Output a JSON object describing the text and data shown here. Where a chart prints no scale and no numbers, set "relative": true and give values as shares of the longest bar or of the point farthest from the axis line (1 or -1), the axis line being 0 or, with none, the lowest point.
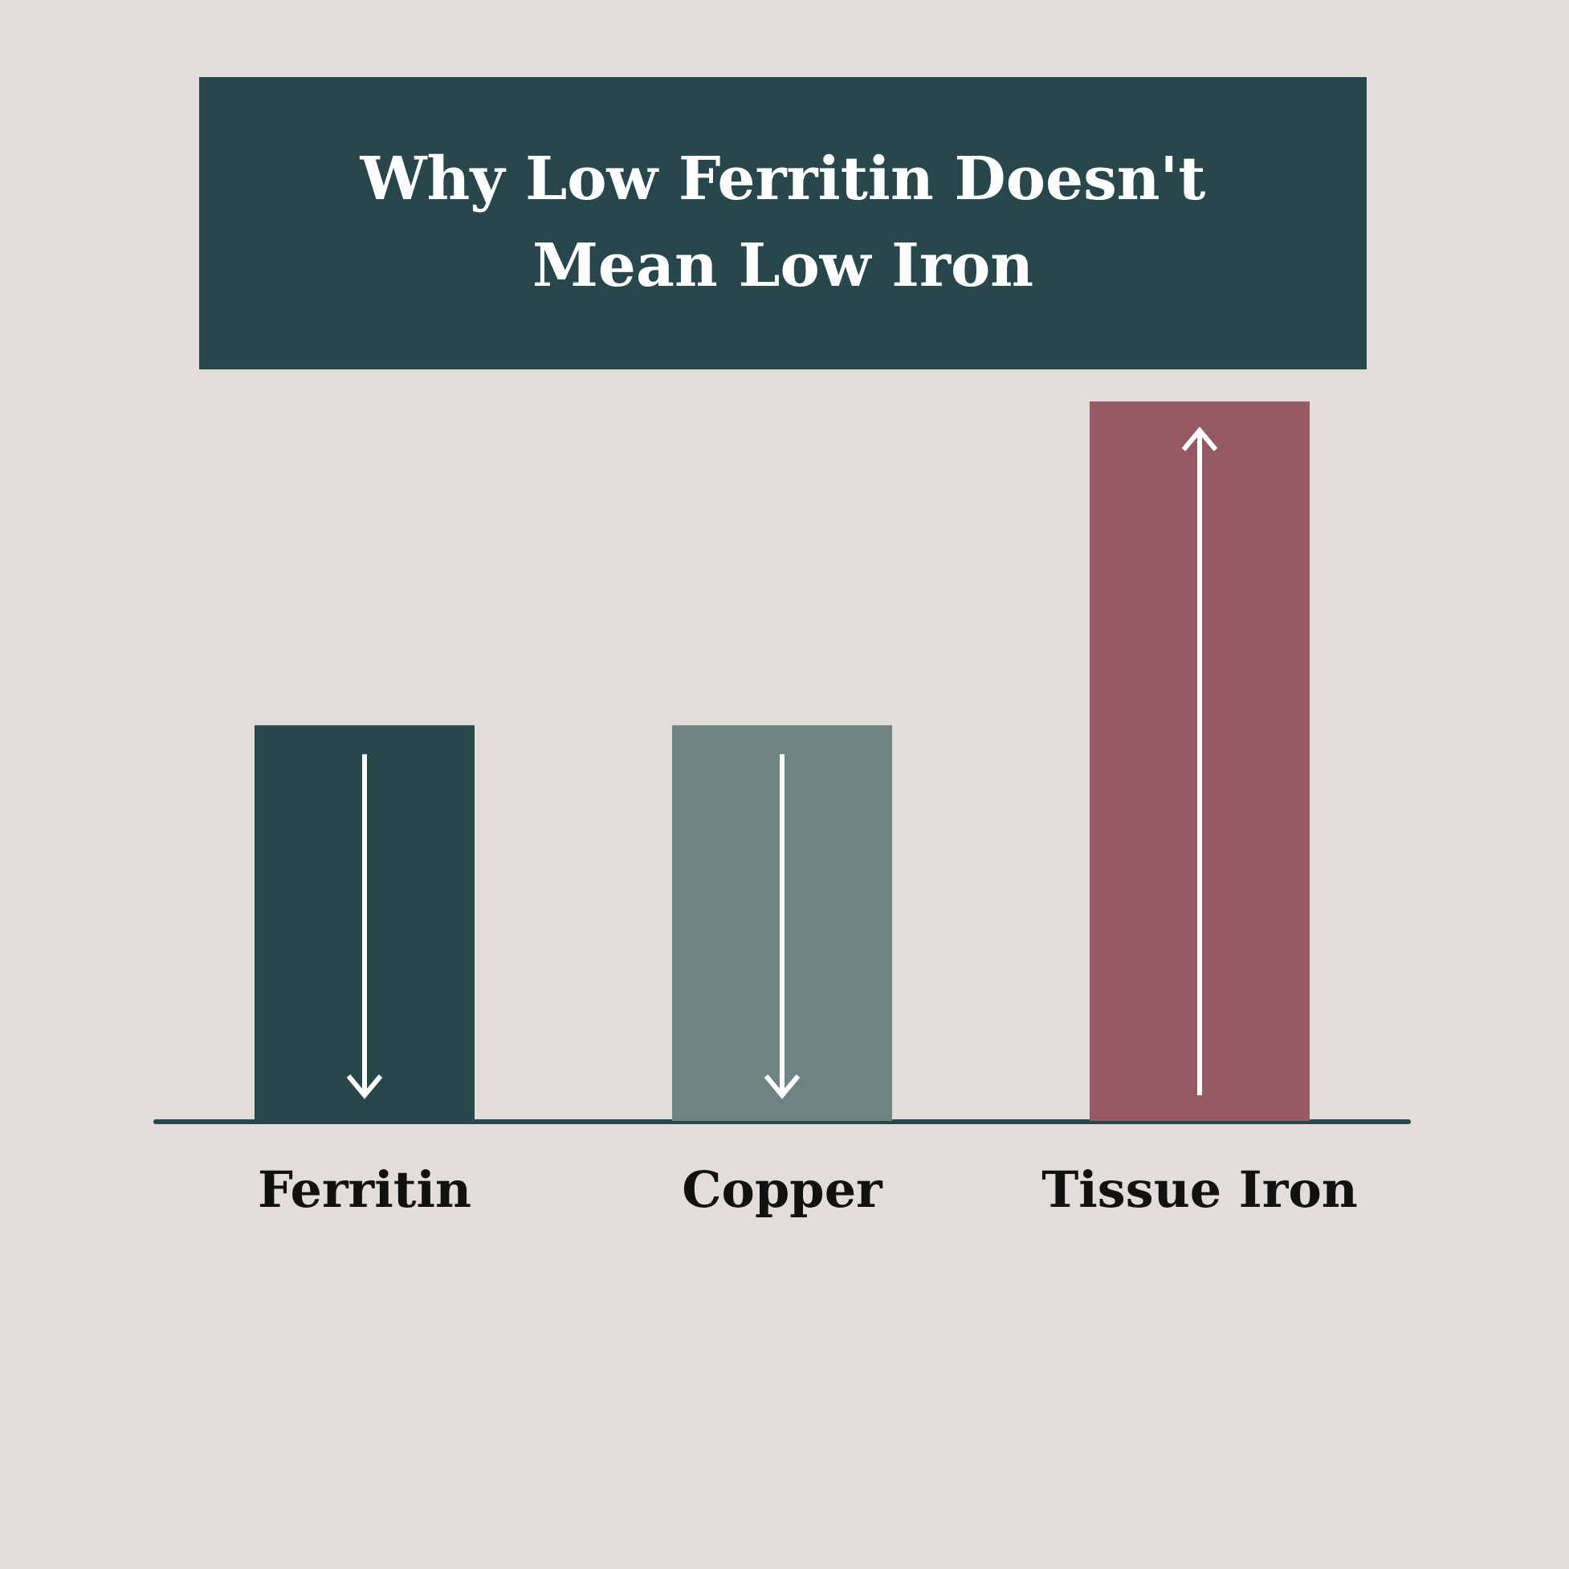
{
  "chart_data": {
    "type": "bar",
    "title": "Why Low Ferritin Doesn't Mean Low Iron",
    "categories": [
      "Ferritin",
      "Copper",
      "Tissue Iron"
    ],
    "values": [
      0.55,
      0.55,
      1
    ],
    "colors": [
      "#27474b",
      "#6f8381",
      "#955a65"
    ],
    "relative": true
  }
}
